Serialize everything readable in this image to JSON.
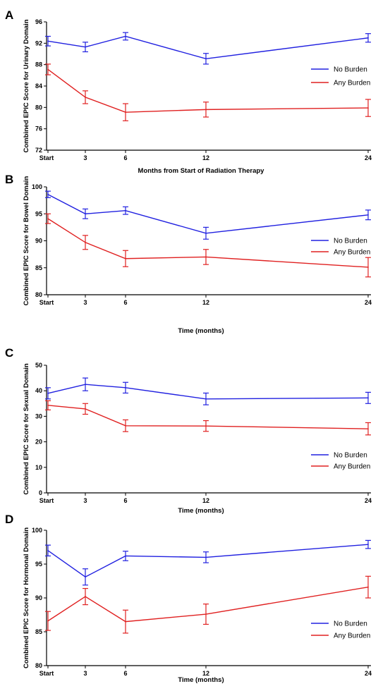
{
  "colors": {
    "no_burden": "#2020e0",
    "any_burden": "#e02020"
  },
  "chart_data": [
    {
      "panel": "A",
      "type": "line",
      "x": [
        "Start",
        "3",
        "6",
        "12",
        "24"
      ],
      "xlabel": "Months from Start of Radiation Therapy",
      "ylabel": "Combined EPIC Score for Urinary Domain",
      "ylim": [
        72,
        96
      ],
      "yticks": [
        "72",
        "76",
        "80",
        "84",
        "88",
        "92",
        "96"
      ],
      "legend_position": "right",
      "series": [
        {
          "name": "No Burden",
          "values": [
            92.4,
            91.3,
            93.3,
            89.1,
            93.0
          ],
          "errors": [
            0.9,
            0.9,
            0.7,
            1.0,
            0.8
          ]
        },
        {
          "name": "Any Burden",
          "values": [
            87.1,
            81.9,
            79.1,
            79.6,
            79.9
          ],
          "errors": [
            1.0,
            1.2,
            1.6,
            1.4,
            1.6
          ]
        }
      ]
    },
    {
      "panel": "B",
      "type": "line",
      "x": [
        "Start",
        "3",
        "6",
        "12",
        "24"
      ],
      "xlabel": "Time (months)",
      "ylabel": "Combined EPIC Score for Bowel Domain",
      "ylim": [
        80,
        100
      ],
      "yticks": [
        "80",
        "85",
        "90",
        "95",
        "100"
      ],
      "legend_position": "right",
      "series": [
        {
          "name": "No Burden",
          "values": [
            98.6,
            95.0,
            95.6,
            91.4,
            94.8
          ],
          "errors": [
            0.6,
            0.9,
            0.7,
            1.1,
            0.9
          ]
        },
        {
          "name": "Any Burden",
          "values": [
            94.1,
            89.7,
            86.7,
            87.0,
            85.1
          ],
          "errors": [
            0.9,
            1.3,
            1.5,
            1.4,
            1.8
          ]
        }
      ]
    },
    {
      "panel": "C",
      "type": "line",
      "x": [
        "Start",
        "3",
        "6",
        "12",
        "24"
      ],
      "xlabel": "Time (months)",
      "ylabel": "Combined EPIC Score for Sexual Domain",
      "ylim": [
        0,
        50
      ],
      "yticks": [
        "0",
        "10",
        "20",
        "30",
        "40",
        "50"
      ],
      "legend_position": "bottom-right",
      "series": [
        {
          "name": "No Burden",
          "values": [
            39.0,
            42.5,
            41.2,
            36.8,
            37.2
          ],
          "errors": [
            2.2,
            2.5,
            2.1,
            2.3,
            2.2
          ]
        },
        {
          "name": "Any Burden",
          "values": [
            34.3,
            32.9,
            26.3,
            26.2,
            25.1
          ],
          "errors": [
            1.8,
            2.1,
            2.3,
            2.1,
            2.4
          ]
        }
      ]
    },
    {
      "panel": "D",
      "type": "line",
      "x": [
        "Start",
        "3",
        "6",
        "12",
        "24"
      ],
      "xlabel": "Time (months)",
      "ylabel": "Combined EPIC Score for Hormonal Domain",
      "ylim": [
        80,
        100
      ],
      "yticks": [
        "80",
        "85",
        "90",
        "95",
        "100"
      ],
      "legend_position": "bottom-right",
      "series": [
        {
          "name": "No Burden",
          "values": [
            97.0,
            93.1,
            96.2,
            96.0,
            97.9
          ],
          "errors": [
            0.8,
            1.2,
            0.7,
            0.8,
            0.6
          ]
        },
        {
          "name": "Any Burden",
          "values": [
            86.6,
            90.2,
            86.5,
            87.6,
            91.6
          ],
          "errors": [
            1.4,
            1.2,
            1.7,
            1.5,
            1.6
          ]
        }
      ]
    }
  ]
}
